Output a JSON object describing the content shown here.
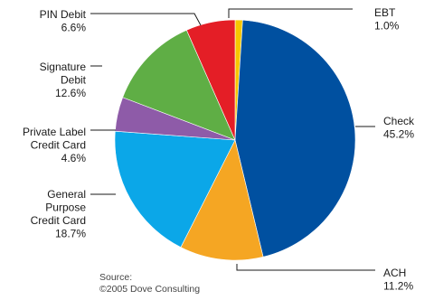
{
  "chart_data": {
    "type": "pie",
    "title": "",
    "start_angle_deg": 0,
    "direction": "clockwise",
    "slices": [
      {
        "key": "ebt",
        "label_lines": [
          "EBT"
        ],
        "value_text": "1.0%",
        "value": 1.0,
        "color": "#F7C600"
      },
      {
        "key": "check",
        "label_lines": [
          "Check"
        ],
        "value_text": "45.2%",
        "value": 45.2,
        "color": "#0050A0"
      },
      {
        "key": "ach",
        "label_lines": [
          "ACH"
        ],
        "value_text": "11.2%",
        "value": 11.2,
        "color": "#F5A623"
      },
      {
        "key": "general-purpose-credit-card",
        "label_lines": [
          "General",
          "Purpose",
          "Credit Card"
        ],
        "value_text": "18.7%",
        "value": 18.7,
        "color": "#0BA7E8"
      },
      {
        "key": "private-label-credit-card",
        "label_lines": [
          "Private Label",
          "Credit Card"
        ],
        "value_text": "4.6%",
        "value": 4.6,
        "color": "#8E5BA8"
      },
      {
        "key": "signature-debit",
        "label_lines": [
          "Signature",
          "Debit"
        ],
        "value_text": "12.6%",
        "value": 12.6,
        "color": "#5FAE45"
      },
      {
        "key": "pin-debit",
        "label_lines": [
          "PIN Debit"
        ],
        "value_text": "6.6%",
        "value": 6.6,
        "color": "#E41E26"
      }
    ],
    "source_lines": [
      "Source:",
      "©2005 Dove Consulting"
    ]
  }
}
